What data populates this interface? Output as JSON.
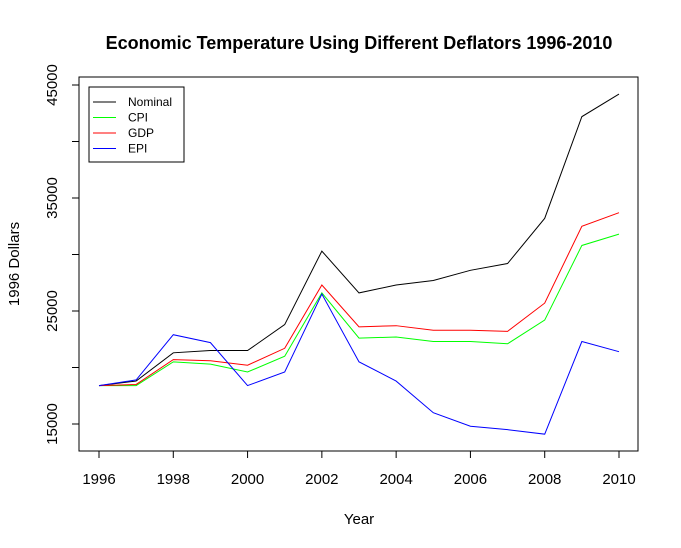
{
  "chart_data": {
    "type": "line",
    "title": "Economic Temperature Using Different Deflators 1996-2010",
    "xlabel": "Year",
    "ylabel": "1996 Dollars",
    "x": [
      1996,
      1997,
      1998,
      1999,
      2000,
      2001,
      2002,
      2003,
      2004,
      2005,
      2006,
      2007,
      2008,
      2009,
      2010
    ],
    "xlim": [
      1996,
      2010
    ],
    "ylim": [
      15000,
      45000
    ],
    "x_ticks": [
      1996,
      1998,
      2000,
      2002,
      2004,
      2006,
      2008,
      2010
    ],
    "y_ticks": [
      15000,
      25000,
      35000,
      45000
    ],
    "grid": false,
    "legend_position": "top-left",
    "series": [
      {
        "name": "Nominal",
        "color": "#000000",
        "values": [
          18400,
          18800,
          21300,
          21500,
          21500,
          23800,
          30300,
          26600,
          27300,
          27700,
          28600,
          29200,
          33200,
          42200,
          44200
        ]
      },
      {
        "name": "CPI",
        "color": "#00ff00",
        "values": [
          18400,
          18400,
          20500,
          20300,
          19600,
          21000,
          26600,
          22600,
          22700,
          22300,
          22300,
          22100,
          24200,
          30800,
          31800
        ]
      },
      {
        "name": "GDP",
        "color": "#ff0000",
        "values": [
          18400,
          18500,
          20700,
          20600,
          20200,
          21700,
          27300,
          23600,
          23700,
          23300,
          23300,
          23200,
          25700,
          32500,
          33700
        ]
      },
      {
        "name": "EPI",
        "color": "#0000ff",
        "values": [
          18400,
          18900,
          22900,
          22200,
          18400,
          19600,
          26500,
          20500,
          18800,
          16000,
          14800,
          14500,
          14100,
          22300,
          21400
        ]
      }
    ]
  }
}
